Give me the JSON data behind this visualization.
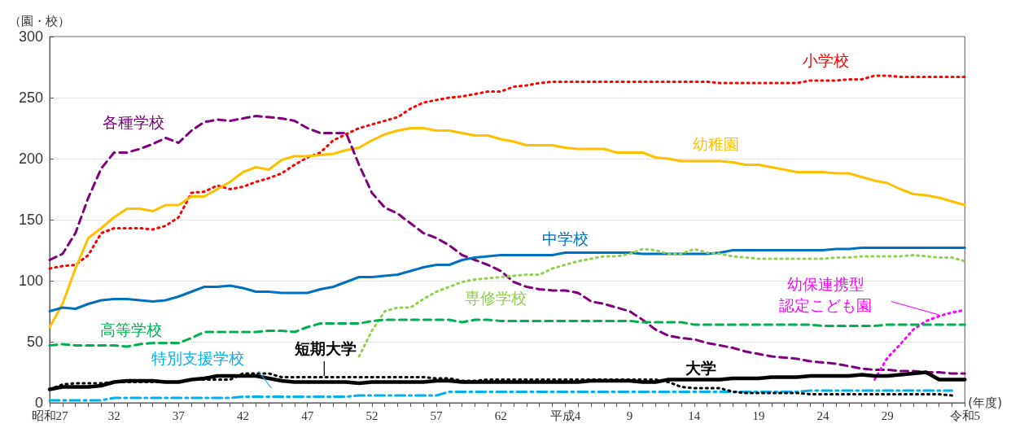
{
  "chart_data": {
    "type": "line",
    "ylabel": "（園・校）",
    "xlabel": "(年度)",
    "categories": [
      "昭和27",
      null,
      null,
      null,
      null,
      "32",
      null,
      null,
      null,
      null,
      "37",
      null,
      null,
      null,
      null,
      "42",
      null,
      null,
      null,
      null,
      "47",
      null,
      null,
      null,
      null,
      "52",
      null,
      null,
      null,
      null,
      "57",
      null,
      null,
      null,
      null,
      "62",
      null,
      null,
      null,
      null,
      "平成4",
      null,
      null,
      null,
      null,
      "9",
      null,
      null,
      null,
      null,
      "14",
      null,
      null,
      null,
      null,
      "19",
      null,
      null,
      null,
      null,
      "24",
      null,
      null,
      null,
      null,
      "29",
      null,
      null,
      null,
      null,
      null,
      "令和5"
    ],
    "ylim": [
      0,
      300
    ],
    "yticks": [
      0,
      50,
      100,
      150,
      200,
      250,
      300
    ],
    "grid": "y",
    "legend": false,
    "marker": "none",
    "series": [
      {
        "name": "小学校",
        "color": "#ff0000",
        "line_style": "dotted",
        "values": [
          110,
          112,
          113,
          121,
          139,
          143,
          143,
          143,
          142,
          145,
          152,
          172,
          173,
          178,
          175,
          177,
          181,
          184,
          188,
          195,
          201,
          205,
          215,
          220,
          225,
          228,
          231,
          234,
          241,
          246,
          248,
          250,
          251,
          253,
          255,
          255,
          259,
          260,
          262,
          263,
          263,
          263,
          263,
          263,
          263,
          263,
          263,
          263,
          263,
          263,
          263,
          263,
          262,
          262,
          262,
          262,
          262,
          262,
          262,
          264,
          264,
          264,
          265,
          265,
          268,
          268,
          267,
          267,
          267,
          267,
          267,
          267
        ]
      },
      {
        "name": "幼稚園",
        "color": "#ffc000",
        "line_style": "solid",
        "values": [
          62,
          81,
          110,
          135,
          143,
          152,
          159,
          159,
          157,
          162,
          162,
          169,
          169,
          175,
          181,
          189,
          193,
          191,
          199,
          202,
          202,
          203,
          204,
          207,
          209,
          215,
          220,
          223,
          225,
          225,
          223,
          223,
          221,
          219,
          219,
          216,
          214,
          211,
          211,
          211,
          209,
          208,
          208,
          208,
          205,
          205,
          205,
          201,
          200,
          198,
          198,
          198,
          198,
          197,
          195,
          195,
          193,
          191,
          189,
          189,
          189,
          188,
          188,
          185,
          182,
          180,
          175,
          171,
          170,
          168,
          165,
          162
        ]
      },
      {
        "name": "各種学校",
        "color": "#800080",
        "line_style": "dashed",
        "values": [
          117,
          122,
          139,
          168,
          192,
          205,
          205,
          208,
          212,
          217,
          213,
          223,
          230,
          232,
          231,
          233,
          235,
          234,
          233,
          231,
          225,
          221,
          221,
          221,
          195,
          172,
          160,
          155,
          147,
          139,
          135,
          129,
          121,
          117,
          113,
          108,
          99,
          95,
          93,
          92,
          92,
          90,
          83,
          81,
          78,
          75,
          68,
          60,
          55,
          53,
          52,
          49,
          47,
          45,
          42,
          40,
          38,
          37,
          36,
          34,
          33,
          32,
          30,
          28,
          27,
          27,
          26,
          26,
          25,
          25,
          24,
          24
        ]
      },
      {
        "name": "中学校",
        "color": "#0070c0",
        "line_style": "solid",
        "values": [
          75,
          78,
          77,
          81,
          84,
          85,
          85,
          84,
          83,
          84,
          87,
          91,
          95,
          95,
          96,
          94,
          91,
          91,
          90,
          90,
          90,
          93,
          95,
          99,
          103,
          103,
          104,
          105,
          108,
          111,
          113,
          113,
          117,
          119,
          120,
          121,
          121,
          121,
          121,
          121,
          123,
          123,
          123,
          123,
          123,
          123,
          122,
          122,
          122,
          122,
          122,
          122,
          123,
          125,
          125,
          125,
          125,
          125,
          125,
          125,
          125,
          126,
          126,
          127,
          127,
          127,
          127,
          127,
          127,
          127,
          127,
          127
        ]
      },
      {
        "name": "専修学校",
        "color": "#92d050",
        "line_style": "dotted",
        "values": [
          null,
          null,
          null,
          null,
          null,
          null,
          null,
          null,
          null,
          null,
          null,
          null,
          null,
          null,
          null,
          null,
          null,
          null,
          null,
          null,
          null,
          null,
          null,
          null,
          38,
          59,
          75,
          78,
          78,
          85,
          91,
          95,
          99,
          101,
          102,
          103,
          104,
          105,
          105,
          110,
          113,
          116,
          118,
          120,
          120,
          122,
          126,
          125,
          122,
          122,
          126,
          123,
          122,
          120,
          119,
          118,
          118,
          118,
          118,
          118,
          118,
          119,
          119,
          120,
          120,
          120,
          120,
          121,
          120,
          119,
          119,
          116
        ]
      },
      {
        "name": "幼保連携型認定こども園",
        "color": "#ff00ff",
        "line_style": "dotted",
        "values": [
          null,
          null,
          null,
          null,
          null,
          null,
          null,
          null,
          null,
          null,
          null,
          null,
          null,
          null,
          null,
          null,
          null,
          null,
          null,
          null,
          null,
          null,
          null,
          null,
          null,
          null,
          null,
          null,
          null,
          null,
          null,
          null,
          null,
          null,
          null,
          null,
          null,
          null,
          null,
          null,
          null,
          null,
          null,
          null,
          null,
          null,
          null,
          null,
          null,
          null,
          null,
          null,
          null,
          null,
          null,
          null,
          null,
          null,
          null,
          null,
          null,
          null,
          null,
          null,
          19,
          37,
          48,
          60,
          67,
          71,
          74,
          76
        ]
      },
      {
        "name": "高等学校",
        "color": "#00b050",
        "line_style": "dashed",
        "values": [
          47,
          48,
          47,
          47,
          47,
          47,
          46,
          48,
          49,
          49,
          49,
          53,
          58,
          58,
          58,
          58,
          58,
          59,
          59,
          58,
          62,
          65,
          65,
          65,
          65,
          67,
          68,
          68,
          68,
          68,
          68,
          68,
          66,
          68,
          68,
          67,
          67,
          67,
          67,
          67,
          67,
          67,
          67,
          67,
          67,
          67,
          66,
          66,
          66,
          66,
          64,
          64,
          64,
          64,
          64,
          64,
          64,
          64,
          64,
          64,
          63,
          63,
          63,
          63,
          63,
          64,
          64,
          64,
          64,
          64,
          64,
          64
        ]
      },
      {
        "name": "特別支援学校",
        "color": "#00b0f0",
        "line_style": "dashdot",
        "values": [
          2,
          2,
          2,
          2,
          2,
          4,
          4,
          4,
          4,
          4,
          4,
          4,
          4,
          4,
          4,
          5,
          5,
          5,
          5,
          5,
          5,
          5,
          5,
          5,
          6,
          6,
          6,
          6,
          6,
          6,
          6,
          9,
          9,
          9,
          9,
          9,
          9,
          9,
          9,
          9,
          9,
          9,
          9,
          9,
          9,
          9,
          9,
          9,
          9,
          9,
          9,
          9,
          9,
          9,
          9,
          9,
          9,
          9,
          9,
          10,
          10,
          10,
          10,
          10,
          10,
          10,
          10,
          10,
          10,
          10,
          10,
          null
        ]
      },
      {
        "name": "短期大学",
        "color": "#000000",
        "line_style": "dotted",
        "values": [
          11,
          15,
          16,
          16,
          16,
          17,
          17,
          17,
          17,
          17,
          17,
          19,
          19,
          19,
          19,
          24,
          24,
          24,
          21,
          21,
          21,
          21,
          21,
          21,
          21,
          21,
          21,
          21,
          21,
          21,
          20,
          20,
          18,
          18,
          19,
          19,
          19,
          19,
          19,
          19,
          19,
          19,
          19,
          19,
          19,
          19,
          19,
          19,
          17,
          13,
          12,
          12,
          12,
          9,
          8,
          8,
          8,
          8,
          8,
          7,
          7,
          7,
          7,
          7,
          7,
          7,
          7,
          7,
          7,
          7,
          6,
          null
        ]
      },
      {
        "name": "大学",
        "color": "#000000",
        "line_style": "solid",
        "values": [
          11,
          13,
          13,
          13,
          14,
          17,
          18,
          18,
          18,
          17,
          17,
          19,
          20,
          22,
          22,
          22,
          22,
          20,
          18,
          17,
          17,
          17,
          17,
          17,
          16,
          17,
          17,
          17,
          17,
          17,
          18,
          18,
          17,
          17,
          17,
          17,
          17,
          17,
          17,
          17,
          17,
          17,
          18,
          18,
          18,
          18,
          17,
          17,
          19,
          19,
          19,
          19,
          19,
          20,
          20,
          20,
          21,
          21,
          21,
          22,
          22,
          22,
          22,
          23,
          22,
          22,
          23,
          24,
          25,
          19,
          19,
          19
        ]
      }
    ]
  }
}
